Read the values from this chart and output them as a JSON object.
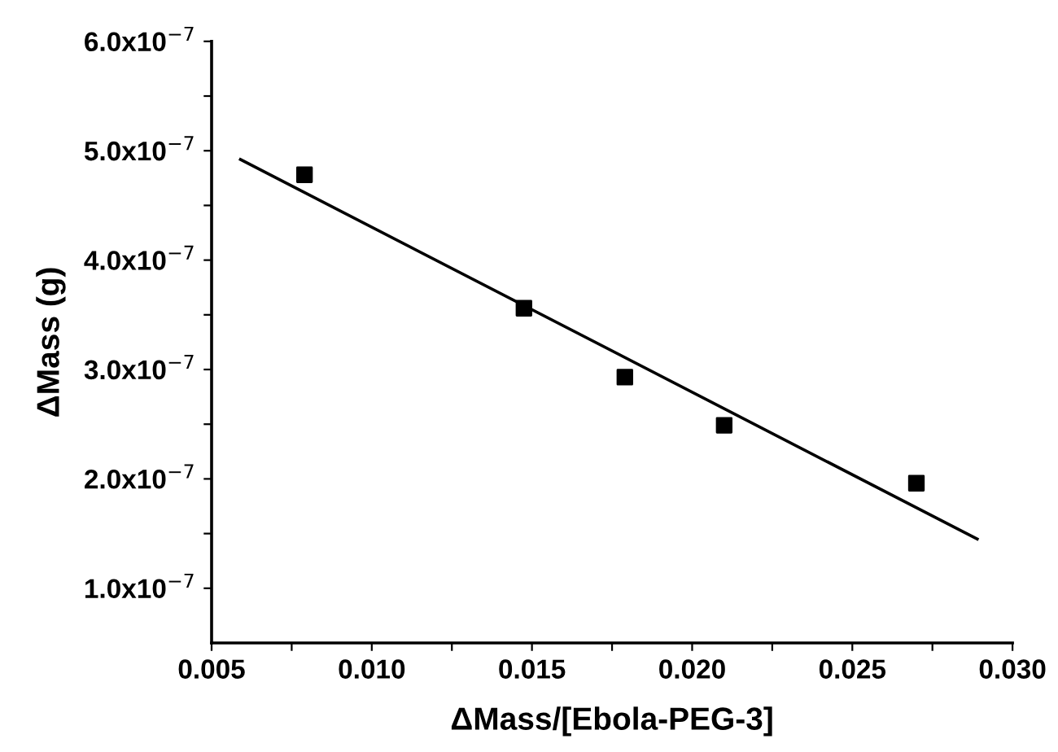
{
  "chart_data": {
    "type": "scatter",
    "xlabel": "ΔMass/[Ebola-PEG-3]",
    "ylabel": "ΔMass (g)",
    "xlim": [
      0.005,
      0.03
    ],
    "ylim": [
      5e-08,
      6e-07
    ],
    "xticks": [
      0.005,
      {
        "value": 0.0075,
        "label": null
      },
      {
        "value": 0.01,
        "label": "0.010"
      },
      {
        "value": 0.0125,
        "label": null
      },
      0.015,
      {
        "value": 0.0175,
        "label": null
      },
      {
        "value": 0.02,
        "label": "0.020"
      },
      {
        "value": 0.0225,
        "label": null
      },
      0.025,
      {
        "value": 0.0275,
        "label": null
      },
      {
        "value": 0.03,
        "label": "0.030"
      }
    ],
    "yticks": [
      {
        "value": 1e-07,
        "label": "1.0x10$^{−7}$"
      },
      {
        "value": 1.5e-07,
        "label": null
      },
      {
        "value": 2e-07,
        "label": "2.0x10$^{−7}$"
      },
      {
        "value": 2.5e-07,
        "label": null
      },
      {
        "value": 3e-07,
        "label": "3.0x10$^{−7}$"
      },
      {
        "value": 3.5e-07,
        "label": null
      },
      {
        "value": 4e-07,
        "label": "4.0x10$^{−7}$"
      },
      {
        "value": 4.5e-07,
        "label": null
      },
      {
        "value": 5e-07,
        "label": "5.0x10$^{−7}$"
      },
      {
        "value": 5.5e-07,
        "label": null
      },
      {
        "value": 6e-07,
        "label": "6.0x10$^{−7}$"
      }
    ],
    "grid": false,
    "legend": false,
    "series": [
      {
        "color": "#000000",
        "marker": "square",
        "x": [
          0.0079,
          0.01475,
          0.0179,
          0.021,
          0.027
        ],
        "values": [
          4.78e-07,
          3.56e-07,
          2.93e-07,
          2.49e-07,
          1.96e-07
        ]
      },
      {
        "type": "line",
        "color": "#000000",
        "marker": "none",
        "line_style": "solid",
        "x": [
          0.0059,
          0.0289
        ],
        "values": [
          4.92e-07,
          1.45e-07
        ]
      }
    ]
  }
}
